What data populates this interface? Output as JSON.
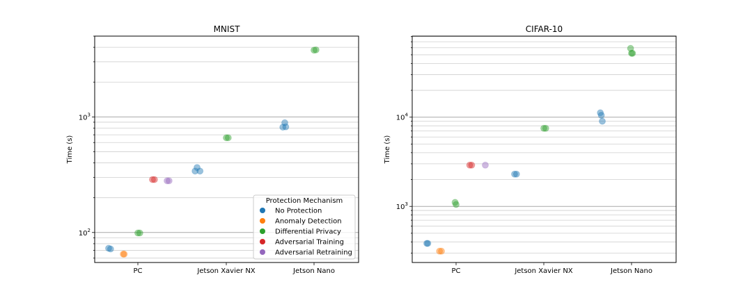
{
  "chart_data": [
    {
      "type": "scatter",
      "title": "MNIST",
      "xlabel": "",
      "ylabel": "Time (s)",
      "yscale": "log",
      "ylim": [
        55,
        5000
      ],
      "categories": [
        "PC",
        "Jetson Xavier NX",
        "Jetson Nano"
      ],
      "y_major_ticks": [
        {
          "value": 100,
          "base": "10",
          "exp": "2"
        },
        {
          "value": 1000,
          "base": "10",
          "exp": "3"
        }
      ],
      "grid": true,
      "legend_placement": "lower-right",
      "series": [
        {
          "name": "No Protection",
          "color": "#1f77b4",
          "points": [
            {
              "category": "PC",
              "offset": -0.3,
              "y": 73
            },
            {
              "category": "PC",
              "offset": -0.28,
              "y": 72
            },
            {
              "category": "Jetson Xavier NX",
              "offset": -0.3,
              "y": 365
            },
            {
              "category": "Jetson Xavier NX",
              "offset": -0.32,
              "y": 340
            },
            {
              "category": "Jetson Xavier NX",
              "offset": -0.27,
              "y": 340
            },
            {
              "category": "Jetson Nano",
              "offset": -0.3,
              "y": 890
            },
            {
              "category": "Jetson Nano",
              "offset": -0.32,
              "y": 815
            },
            {
              "category": "Jetson Nano",
              "offset": -0.29,
              "y": 820
            }
          ]
        },
        {
          "name": "Anomaly Detection",
          "color": "#ff7f0e",
          "points": [
            {
              "category": "PC",
              "offset": -0.15,
              "y": 65
            },
            {
              "category": "PC",
              "offset": -0.14,
              "y": 65
            }
          ]
        },
        {
          "name": "Differential Privacy",
          "color": "#2ca02c",
          "points": [
            {
              "category": "PC",
              "offset": 0.0,
              "y": 99
            },
            {
              "category": "PC",
              "offset": 0.02,
              "y": 99
            },
            {
              "category": "Jetson Xavier NX",
              "offset": 0.0,
              "y": 660
            },
            {
              "category": "Jetson Xavier NX",
              "offset": 0.02,
              "y": 660
            },
            {
              "category": "Jetson Nano",
              "offset": 0.0,
              "y": 3780
            },
            {
              "category": "Jetson Nano",
              "offset": 0.02,
              "y": 3800
            }
          ]
        },
        {
          "name": "Adversarial Training",
          "color": "#d62728",
          "points": [
            {
              "category": "PC",
              "offset": 0.15,
              "y": 287
            },
            {
              "category": "PC",
              "offset": 0.17,
              "y": 287
            }
          ]
        },
        {
          "name": "Adversarial Retraining",
          "color": "#9467bd",
          "points": [
            {
              "category": "PC",
              "offset": 0.3,
              "y": 280
            },
            {
              "category": "PC",
              "offset": 0.32,
              "y": 280
            }
          ]
        }
      ],
      "legend": {
        "title": "Protection Mechanism",
        "entries": [
          {
            "name": "No Protection",
            "color": "#1f77b4"
          },
          {
            "name": "Anomaly Detection",
            "color": "#ff7f0e"
          },
          {
            "name": "Differential Privacy",
            "color": "#2ca02c"
          },
          {
            "name": "Adversarial Training",
            "color": "#d62728"
          },
          {
            "name": "Adversarial Retraining",
            "color": "#9467bd"
          }
        ]
      }
    },
    {
      "type": "scatter",
      "title": "CIFAR-10",
      "xlabel": "",
      "ylabel": "Time (s)",
      "yscale": "log",
      "ylim": [
        235,
        81000
      ],
      "categories": [
        "PC",
        "Jetson Xavier NX",
        "Jetson Nano"
      ],
      "y_major_ticks": [
        {
          "value": 1000,
          "base": "10",
          "exp": "3"
        },
        {
          "value": 10000,
          "base": "10",
          "exp": "4"
        }
      ],
      "grid": true,
      "series": [
        {
          "name": "No Protection",
          "color": "#1f77b4",
          "points": [
            {
              "category": "PC",
              "offset": -0.3,
              "y": 385
            },
            {
              "category": "PC",
              "offset": -0.29,
              "y": 385
            },
            {
              "category": "Jetson Xavier NX",
              "offset": -0.3,
              "y": 2300
            },
            {
              "category": "Jetson Xavier NX",
              "offset": -0.28,
              "y": 2300
            },
            {
              "category": "Jetson Nano",
              "offset": -0.32,
              "y": 11200
            },
            {
              "category": "Jetson Nano",
              "offset": -0.31,
              "y": 10500
            },
            {
              "category": "Jetson Nano",
              "offset": -0.3,
              "y": 9000
            }
          ]
        },
        {
          "name": "Anomaly Detection",
          "color": "#ff7f0e",
          "points": [
            {
              "category": "PC",
              "offset": -0.17,
              "y": 315
            },
            {
              "category": "PC",
              "offset": -0.15,
              "y": 315
            }
          ]
        },
        {
          "name": "Differential Privacy",
          "color": "#2ca02c",
          "points": [
            {
              "category": "PC",
              "offset": -0.01,
              "y": 1110
            },
            {
              "category": "PC",
              "offset": 0.0,
              "y": 1050
            },
            {
              "category": "Jetson Xavier NX",
              "offset": 0.0,
              "y": 7500
            },
            {
              "category": "Jetson Xavier NX",
              "offset": 0.02,
              "y": 7500
            },
            {
              "category": "Jetson Nano",
              "offset": -0.01,
              "y": 59000
            },
            {
              "category": "Jetson Nano",
              "offset": 0.0,
              "y": 52000
            },
            {
              "category": "Jetson Nano",
              "offset": 0.01,
              "y": 52000
            }
          ]
        },
        {
          "name": "Adversarial Training",
          "color": "#d62728",
          "points": [
            {
              "category": "PC",
              "offset": 0.14,
              "y": 2900
            },
            {
              "category": "PC",
              "offset": 0.16,
              "y": 2900
            }
          ]
        },
        {
          "name": "Adversarial Retraining",
          "color": "#9467bd",
          "points": [
            {
              "category": "PC",
              "offset": 0.3,
              "y": 2900
            }
          ]
        }
      ]
    }
  ]
}
